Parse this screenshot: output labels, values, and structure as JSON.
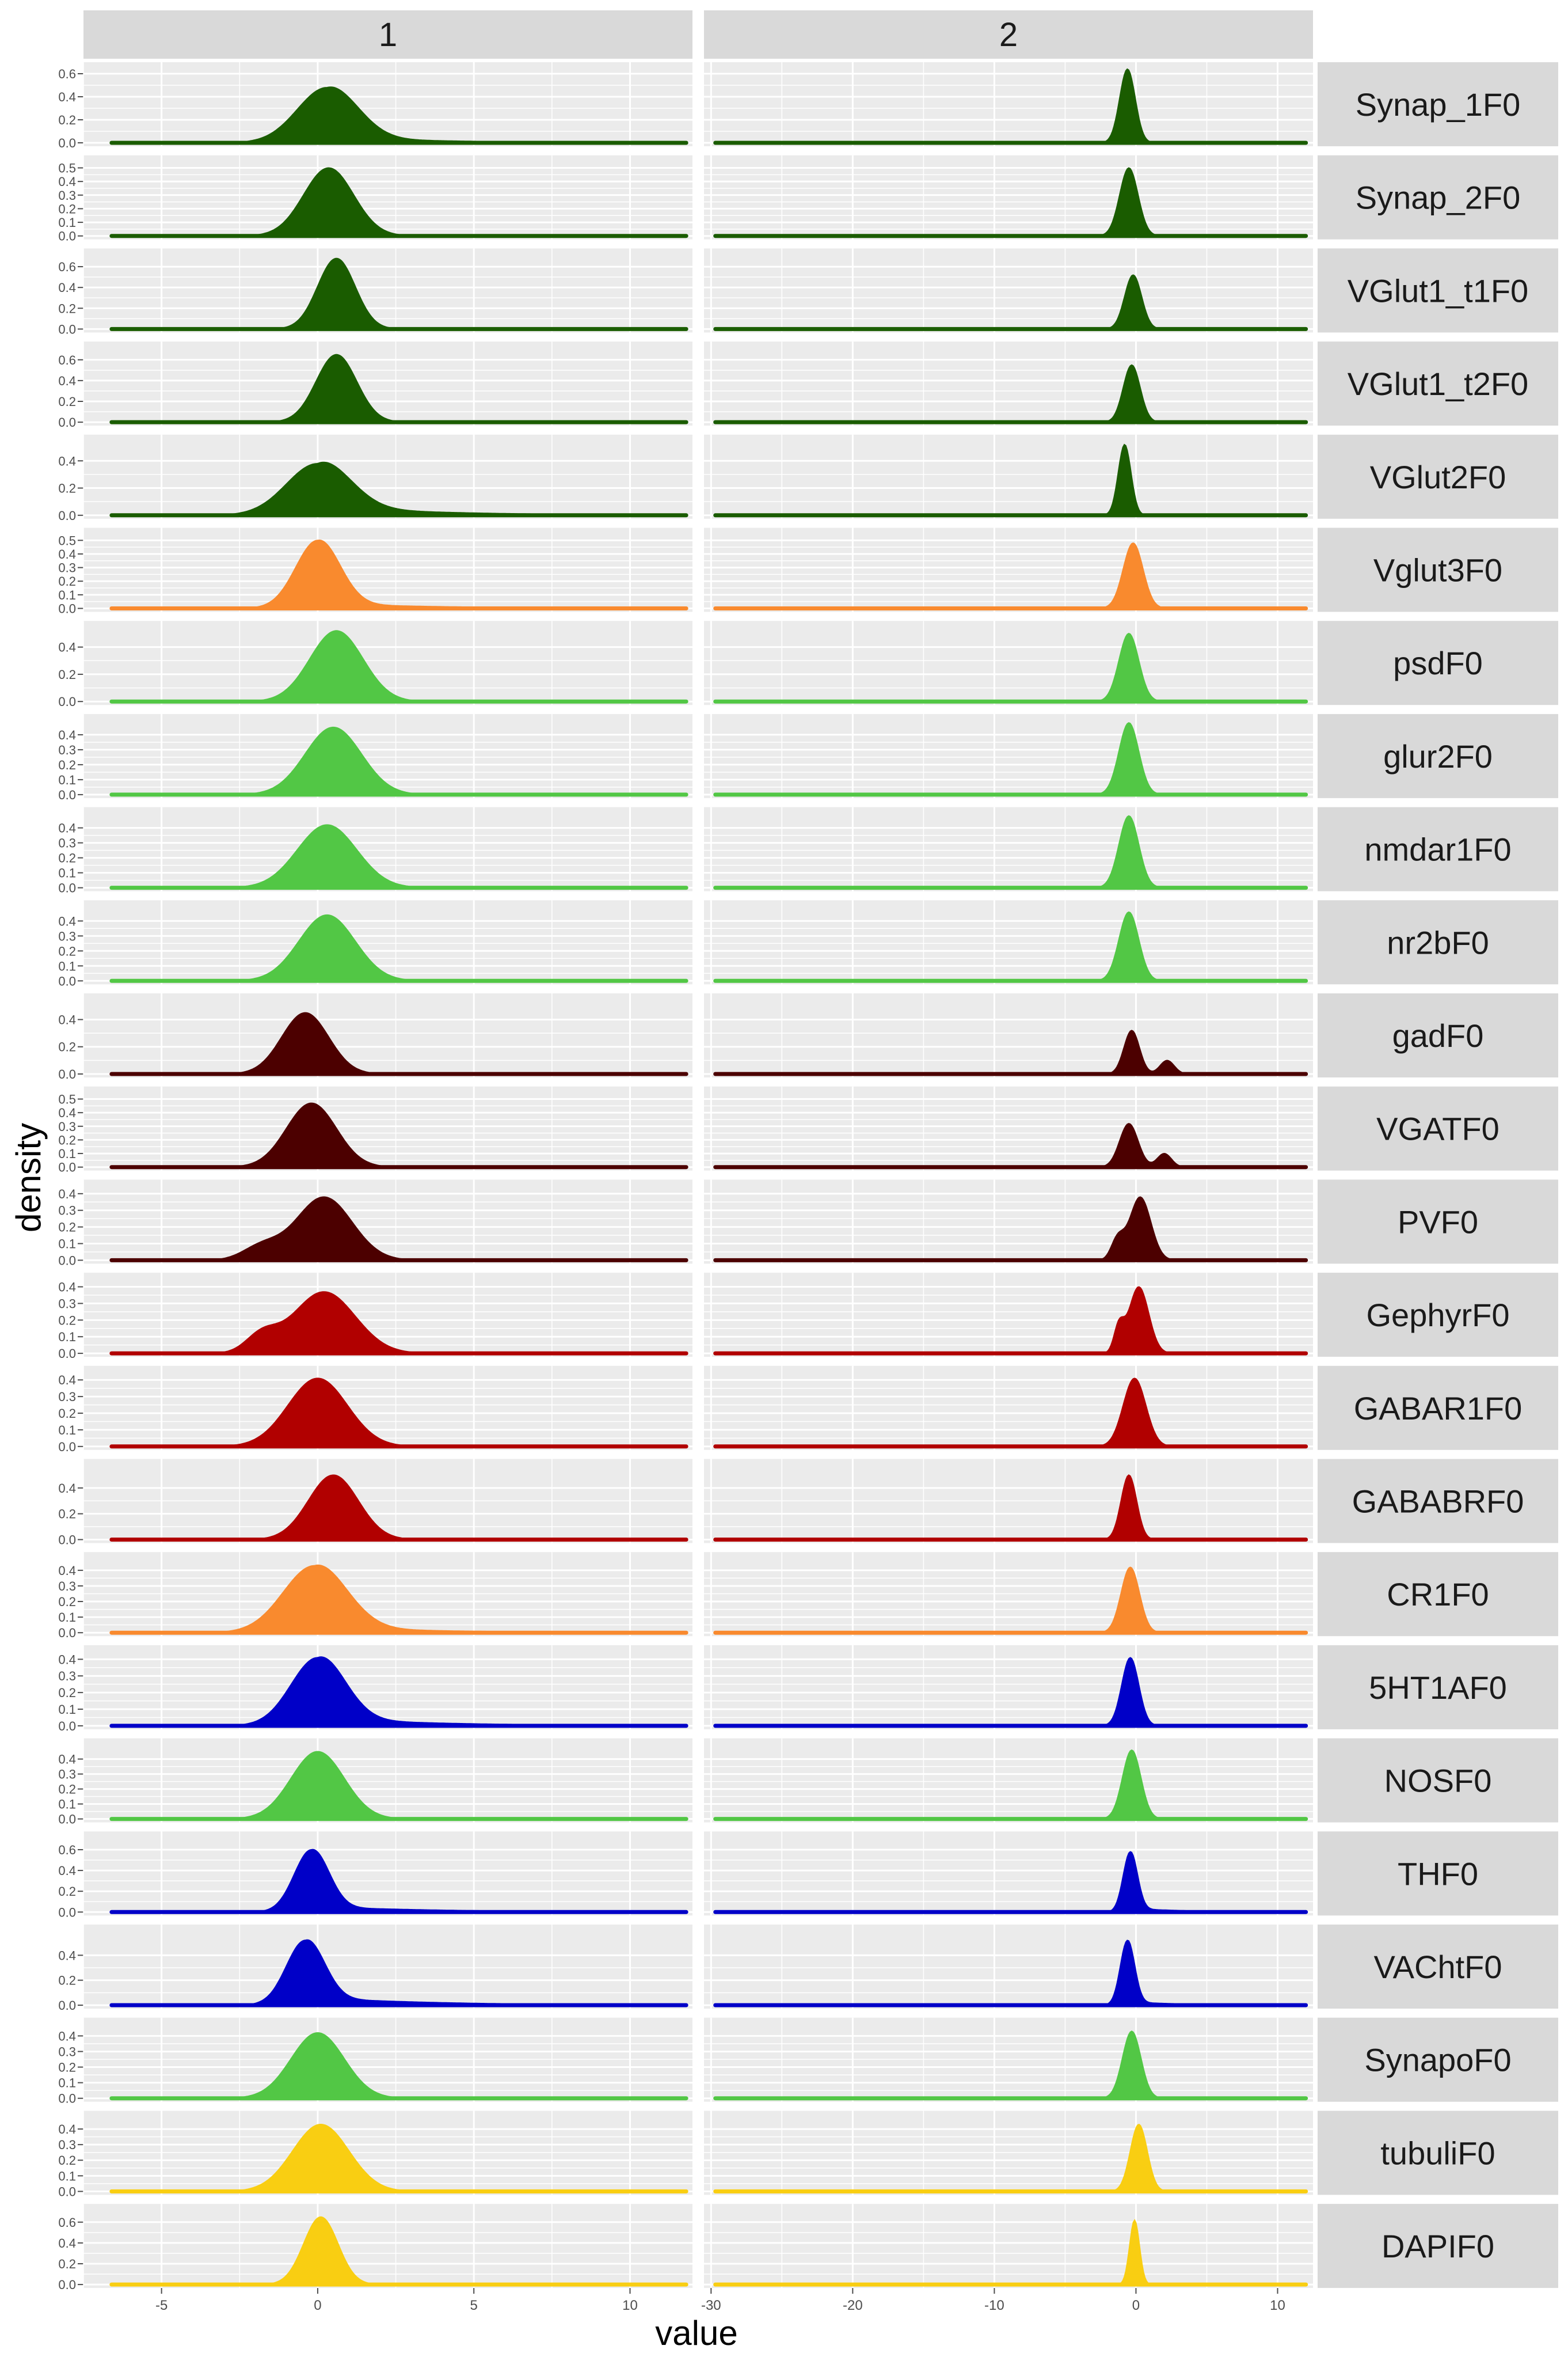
{
  "chart_data": {
    "type": "area",
    "kind": "density-facet-grid",
    "xlabel": "value",
    "ylabel": "density",
    "columns": [
      {
        "label": "1",
        "xlim": [
          -7.5,
          12
        ],
        "ticks": [
          -5,
          0,
          5,
          10
        ]
      },
      {
        "label": "2",
        "xlim": [
          -30.5,
          12.5
        ],
        "ticks": [
          -30,
          -20,
          -10,
          0,
          10
        ]
      }
    ],
    "colors": {
      "darkgreen": "#1a5c00",
      "orange": "#f98a2e",
      "lightgreen": "#52c745",
      "darkred": "#4c0000",
      "red": "#b10000",
      "blue": "#0000c8",
      "yellow": "#f9ce12"
    },
    "rows": [
      {
        "label": "Synap_1F0",
        "color": "#1a5c00",
        "ymax": 0.65,
        "yticks": [
          "0.0",
          "0.2",
          "0.4",
          "0.6"
        ],
        "series": [
          {
            "mu": 0.3,
            "sd": 0.95,
            "peak": 0.48,
            "tail": 0.05
          },
          {
            "mu": -0.6,
            "sd": 0.55,
            "peak": 0.64
          }
        ]
      },
      {
        "label": "Synap_2F0",
        "color": "#1a5c00",
        "ymax": 0.55,
        "yticks": [
          "0.0",
          "0.1",
          "0.2",
          "0.3",
          "0.4",
          "0.5"
        ],
        "series": [
          {
            "mu": 0.35,
            "sd": 0.8,
            "peak": 0.5
          },
          {
            "mu": -0.5,
            "sd": 0.65,
            "peak": 0.5
          }
        ]
      },
      {
        "label": "VGlut1_t1F0",
        "color": "#1a5c00",
        "ymax": 0.72,
        "yticks": [
          "0.0",
          "0.2",
          "0.4",
          "0.6"
        ],
        "series": [
          {
            "mu": 0.6,
            "sd": 0.6,
            "peak": 0.68
          },
          {
            "mu": -0.2,
            "sd": 0.6,
            "peak": 0.52
          }
        ]
      },
      {
        "label": "VGlut1_t2F0",
        "color": "#1a5c00",
        "ymax": 0.72,
        "yticks": [
          "0.0",
          "0.2",
          "0.4",
          "0.6"
        ],
        "series": [
          {
            "mu": 0.6,
            "sd": 0.65,
            "peak": 0.65
          },
          {
            "mu": -0.3,
            "sd": 0.6,
            "peak": 0.55
          }
        ]
      },
      {
        "label": "VGlut2F0",
        "color": "#1a5c00",
        "ymax": 0.55,
        "yticks": [
          "0.0",
          "0.2",
          "0.4"
        ],
        "series": [
          {
            "mu": 0.0,
            "sd": 1.0,
            "peak": 0.38,
            "tail": 0.07
          },
          {
            "mu": -0.8,
            "sd": 0.45,
            "peak": 0.52
          }
        ]
      },
      {
        "label": "Vglut3F0",
        "color": "#f98a2e",
        "ymax": 0.55,
        "yticks": [
          "0.0",
          "0.1",
          "0.2",
          "0.3",
          "0.4",
          "0.5"
        ],
        "series": [
          {
            "mu": 0.0,
            "sd": 0.7,
            "peak": 0.5,
            "tail": 0.04
          },
          {
            "mu": -0.2,
            "sd": 0.7,
            "peak": 0.48
          }
        ]
      },
      {
        "label": "psdF0",
        "color": "#52c745",
        "ymax": 0.55,
        "yticks": [
          "0.0",
          "0.2",
          "0.4"
        ],
        "series": [
          {
            "mu": 0.6,
            "sd": 0.85,
            "peak": 0.52
          },
          {
            "mu": -0.5,
            "sd": 0.7,
            "peak": 0.5
          }
        ]
      },
      {
        "label": "glur2F0",
        "color": "#52c745",
        "ymax": 0.5,
        "yticks": [
          "0.0",
          "0.1",
          "0.2",
          "0.3",
          "0.4"
        ],
        "series": [
          {
            "mu": 0.5,
            "sd": 0.9,
            "peak": 0.45
          },
          {
            "mu": -0.5,
            "sd": 0.7,
            "peak": 0.48
          }
        ]
      },
      {
        "label": "nmdar1F0",
        "color": "#52c745",
        "ymax": 0.5,
        "yticks": [
          "0.0",
          "0.1",
          "0.2",
          "0.3",
          "0.4"
        ],
        "series": [
          {
            "mu": 0.3,
            "sd": 0.95,
            "peak": 0.42
          },
          {
            "mu": -0.5,
            "sd": 0.7,
            "peak": 0.48
          }
        ]
      },
      {
        "label": "nr2bF0",
        "color": "#52c745",
        "ymax": 0.5,
        "yticks": [
          "0.0",
          "0.1",
          "0.2",
          "0.3",
          "0.4"
        ],
        "series": [
          {
            "mu": 0.3,
            "sd": 0.9,
            "peak": 0.44
          },
          {
            "mu": -0.5,
            "sd": 0.7,
            "peak": 0.46
          }
        ]
      },
      {
        "label": "gadF0",
        "color": "#4c0000",
        "ymax": 0.55,
        "yticks": [
          "0.0",
          "0.2",
          "0.4"
        ],
        "series": [
          {
            "mu": -0.4,
            "sd": 0.75,
            "peak": 0.45
          },
          {
            "mu": -0.3,
            "sd": 0.55,
            "peak": 0.32,
            "tail2": {
              "mu": 2.2,
              "sd": 0.5,
              "peak": 0.1
            }
          }
        ]
      },
      {
        "label": "VGATF0",
        "color": "#4c0000",
        "ymax": 0.55,
        "yticks": [
          "0.0",
          "0.1",
          "0.2",
          "0.3",
          "0.4",
          "0.5"
        ],
        "series": [
          {
            "mu": -0.2,
            "sd": 0.8,
            "peak": 0.47
          },
          {
            "mu": -0.5,
            "sd": 0.65,
            "peak": 0.32,
            "tail2": {
              "mu": 2.0,
              "sd": 0.5,
              "peak": 0.1
            }
          }
        ]
      },
      {
        "label": "PVF0",
        "color": "#4c0000",
        "ymax": 0.45,
        "yticks": [
          "0.0",
          "0.1",
          "0.2",
          "0.3",
          "0.4"
        ],
        "series": [
          {
            "mu": 0.2,
            "sd": 0.9,
            "peak": 0.38,
            "left2": {
              "mu": -1.8,
              "sd": 0.6,
              "peak": 0.08
            }
          },
          {
            "mu": 0.3,
            "sd": 0.75,
            "peak": 0.38,
            "left2": {
              "mu": -1.3,
              "sd": 0.45,
              "peak": 0.12
            }
          }
        ]
      },
      {
        "label": "GephyrF0",
        "color": "#b10000",
        "ymax": 0.45,
        "yticks": [
          "0.0",
          "0.1",
          "0.2",
          "0.3",
          "0.4"
        ],
        "series": [
          {
            "mu": 0.2,
            "sd": 1.0,
            "peak": 0.37,
            "left2": {
              "mu": -1.8,
              "sd": 0.5,
              "peak": 0.1
            }
          },
          {
            "mu": 0.2,
            "sd": 0.7,
            "peak": 0.4,
            "left2": {
              "mu": -1.2,
              "sd": 0.35,
              "peak": 0.15
            }
          }
        ]
      },
      {
        "label": "GABAR1F0",
        "color": "#b10000",
        "ymax": 0.45,
        "yticks": [
          "0.0",
          "0.1",
          "0.2",
          "0.3",
          "0.4"
        ],
        "series": [
          {
            "mu": 0.0,
            "sd": 0.95,
            "peak": 0.41
          },
          {
            "mu": -0.1,
            "sd": 0.8,
            "peak": 0.41
          }
        ]
      },
      {
        "label": "GABABRF0",
        "color": "#b10000",
        "ymax": 0.58,
        "yticks": [
          "0.0",
          "0.2",
          "0.4"
        ],
        "series": [
          {
            "mu": 0.5,
            "sd": 0.8,
            "peak": 0.5
          },
          {
            "mu": -0.5,
            "sd": 0.55,
            "peak": 0.5
          }
        ]
      },
      {
        "label": "CR1F0",
        "color": "#f98a2e",
        "ymax": 0.48,
        "yticks": [
          "0.0",
          "0.1",
          "0.2",
          "0.3",
          "0.4"
        ],
        "series": [
          {
            "mu": -0.1,
            "sd": 1.0,
            "peak": 0.43,
            "tail": 0.04
          },
          {
            "mu": -0.4,
            "sd": 0.65,
            "peak": 0.42
          }
        ]
      },
      {
        "label": "5HT1AF0",
        "color": "#0000c8",
        "ymax": 0.45,
        "yticks": [
          "0.0",
          "0.1",
          "0.2",
          "0.3",
          "0.4"
        ],
        "series": [
          {
            "mu": 0.0,
            "sd": 0.85,
            "peak": 0.41,
            "tail": 0.05
          },
          {
            "mu": -0.4,
            "sd": 0.6,
            "peak": 0.41
          }
        ]
      },
      {
        "label": "NOSF0",
        "color": "#52c745",
        "ymax": 0.5,
        "yticks": [
          "0.0",
          "0.1",
          "0.2",
          "0.3",
          "0.4"
        ],
        "series": [
          {
            "mu": 0.0,
            "sd": 0.85,
            "peak": 0.45
          },
          {
            "mu": -0.3,
            "sd": 0.65,
            "peak": 0.46
          }
        ]
      },
      {
        "label": "THF0",
        "color": "#0000c8",
        "ymax": 0.72,
        "yticks": [
          "0.0",
          "0.2",
          "0.4",
          "0.6"
        ],
        "series": [
          {
            "mu": -0.2,
            "sd": 0.55,
            "peak": 0.6,
            "tail": 0.06
          },
          {
            "mu": -0.4,
            "sd": 0.5,
            "peak": 0.58,
            "tail": 0.04
          }
        ]
      },
      {
        "label": "VAChtF0",
        "color": "#0000c8",
        "ymax": 0.6,
        "yticks": [
          "0.0",
          "0.2",
          "0.4"
        ],
        "series": [
          {
            "mu": -0.4,
            "sd": 0.6,
            "peak": 0.52,
            "tail": 0.07
          },
          {
            "mu": -0.6,
            "sd": 0.5,
            "peak": 0.52,
            "tail": 0.03
          }
        ]
      },
      {
        "label": "SynapoF0",
        "color": "#52c745",
        "ymax": 0.48,
        "yticks": [
          "0.0",
          "0.1",
          "0.2",
          "0.3",
          "0.4"
        ],
        "series": [
          {
            "mu": 0.0,
            "sd": 0.85,
            "peak": 0.42
          },
          {
            "mu": -0.3,
            "sd": 0.65,
            "peak": 0.43
          }
        ]
      },
      {
        "label": "tubuliF0",
        "color": "#f9ce12",
        "ymax": 0.48,
        "yticks": [
          "0.0",
          "0.1",
          "0.2",
          "0.3",
          "0.4"
        ],
        "series": [
          {
            "mu": 0.1,
            "sd": 0.9,
            "peak": 0.43
          },
          {
            "mu": 0.2,
            "sd": 0.6,
            "peak": 0.43
          }
        ]
      },
      {
        "label": "DAPIF0",
        "color": "#f9ce12",
        "ymax": 0.72,
        "yticks": [
          "0.0",
          "0.2",
          "0.4",
          "0.6"
        ],
        "series": [
          {
            "mu": 0.1,
            "sd": 0.55,
            "peak": 0.65
          },
          {
            "mu": -0.1,
            "sd": 0.35,
            "peak": 0.62
          }
        ]
      }
    ]
  }
}
